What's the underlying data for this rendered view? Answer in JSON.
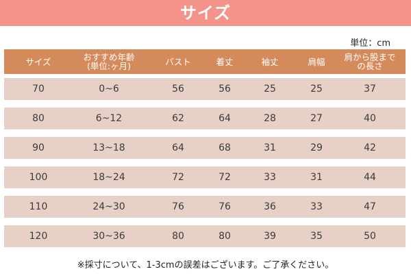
{
  "title": "サイズ",
  "unit_label": "単位：cm",
  "colors": {
    "banner": "#f4938a",
    "header": "#d58a5b",
    "row": "#e7d1c6"
  },
  "table": {
    "headers": [
      "サイズ",
      "おすすめ年齢\n(単位:ヶ月)",
      "バスト",
      "着丈",
      "袖丈",
      "肩幅",
      "肩から股まで\nの長さ"
    ],
    "rows": [
      [
        "70",
        "0~6",
        "56",
        "56",
        "25",
        "25",
        "37"
      ],
      [
        "80",
        "6~12",
        "62",
        "64",
        "28",
        "27",
        "40"
      ],
      [
        "90",
        "13~18",
        "64",
        "68",
        "31",
        "29",
        "42"
      ],
      [
        "100",
        "18~24",
        "72",
        "72",
        "33",
        "31",
        "44"
      ],
      [
        "110",
        "24~30",
        "76",
        "76",
        "36",
        "33",
        "47"
      ],
      [
        "120",
        "30~36",
        "80",
        "80",
        "39",
        "35",
        "50"
      ]
    ]
  },
  "note": "※採寸について、1-3cmの誤差はございます。ご了承ください。"
}
